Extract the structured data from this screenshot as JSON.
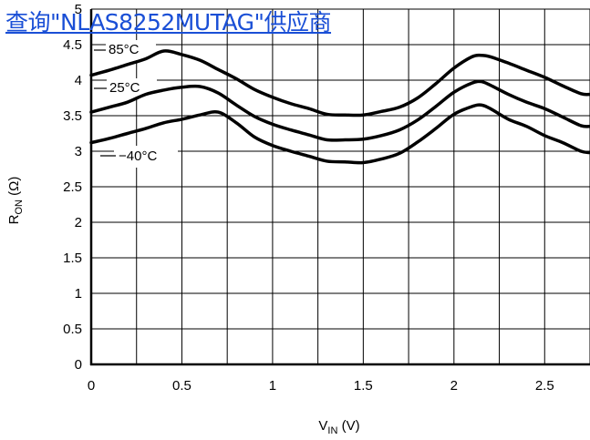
{
  "link_banner": "查询\"NLAS8252MUTAG\"供应商",
  "chart_data": {
    "type": "line",
    "title": "",
    "xlabel": "V_IN (V)",
    "xlabel_main": "V",
    "xlabel_sub": "IN",
    "xlabel_unit": " (V)",
    "ylabel": "R_ON (Ω)",
    "ylabel_main": "R",
    "ylabel_sub": "ON",
    "ylabel_unit": " (Ω)",
    "xlim": [
      0,
      2.75
    ],
    "ylim": [
      0,
      5
    ],
    "xticks": [
      0,
      0.5,
      1,
      1.5,
      2,
      2.5
    ],
    "xtick_labels": [
      "0",
      "0.5",
      "1",
      "1.5",
      "2",
      "2.5"
    ],
    "yticks": [
      0,
      0.5,
      1,
      1.5,
      2,
      2.5,
      3,
      3.5,
      4,
      4.5,
      5
    ],
    "ytick_labels": [
      "0",
      "0.5",
      "1",
      "1.5",
      "2",
      "2.5",
      "3",
      "3.5",
      "4",
      "4.5",
      "5"
    ],
    "x_grid_step": 0.25,
    "grid": true,
    "legend": "none",
    "series": [
      {
        "name": "85°C",
        "x": [
          0,
          0.1,
          0.2,
          0.3,
          0.4,
          0.5,
          0.6,
          0.7,
          0.8,
          0.9,
          1.0,
          1.1,
          1.2,
          1.3,
          1.4,
          1.5,
          1.6,
          1.7,
          1.8,
          1.9,
          2.0,
          2.1,
          2.15,
          2.2,
          2.3,
          2.4,
          2.5,
          2.6,
          2.7,
          2.75
        ],
        "y": [
          4.07,
          4.14,
          4.22,
          4.3,
          4.41,
          4.36,
          4.28,
          4.15,
          4.02,
          3.87,
          3.76,
          3.67,
          3.6,
          3.52,
          3.51,
          3.51,
          3.56,
          3.62,
          3.75,
          3.95,
          4.17,
          4.33,
          4.35,
          4.33,
          4.24,
          4.14,
          4.04,
          3.92,
          3.81,
          3.8
        ]
      },
      {
        "name": "25°C",
        "x": [
          0,
          0.1,
          0.2,
          0.3,
          0.4,
          0.5,
          0.6,
          0.7,
          0.8,
          0.9,
          1.0,
          1.1,
          1.2,
          1.3,
          1.4,
          1.5,
          1.6,
          1.7,
          1.8,
          1.9,
          2.0,
          2.1,
          2.15,
          2.2,
          2.3,
          2.4,
          2.5,
          2.6,
          2.7,
          2.75
        ],
        "y": [
          3.55,
          3.62,
          3.69,
          3.8,
          3.86,
          3.9,
          3.91,
          3.82,
          3.65,
          3.49,
          3.38,
          3.3,
          3.23,
          3.16,
          3.16,
          3.17,
          3.22,
          3.3,
          3.44,
          3.63,
          3.83,
          3.96,
          3.98,
          3.93,
          3.8,
          3.69,
          3.6,
          3.48,
          3.36,
          3.35
        ]
      },
      {
        "name": "−40°C",
        "x": [
          0,
          0.1,
          0.2,
          0.3,
          0.4,
          0.5,
          0.6,
          0.7,
          0.8,
          0.9,
          1.0,
          1.1,
          1.2,
          1.3,
          1.4,
          1.5,
          1.6,
          1.7,
          1.8,
          1.9,
          2.0,
          2.1,
          2.15,
          2.2,
          2.3,
          2.4,
          2.5,
          2.6,
          2.7,
          2.75
        ],
        "y": [
          3.12,
          3.18,
          3.25,
          3.32,
          3.4,
          3.45,
          3.51,
          3.55,
          3.4,
          3.2,
          3.08,
          3.0,
          2.93,
          2.86,
          2.85,
          2.84,
          2.89,
          2.97,
          3.13,
          3.32,
          3.52,
          3.63,
          3.65,
          3.6,
          3.45,
          3.35,
          3.22,
          3.12,
          3.0,
          2.98
        ]
      }
    ],
    "annotations": [
      {
        "text": "85°C",
        "series": "85°C"
      },
      {
        "text": "25°C",
        "series": "25°C"
      },
      {
        "text": "−40°C",
        "series": "−40°C"
      }
    ]
  }
}
